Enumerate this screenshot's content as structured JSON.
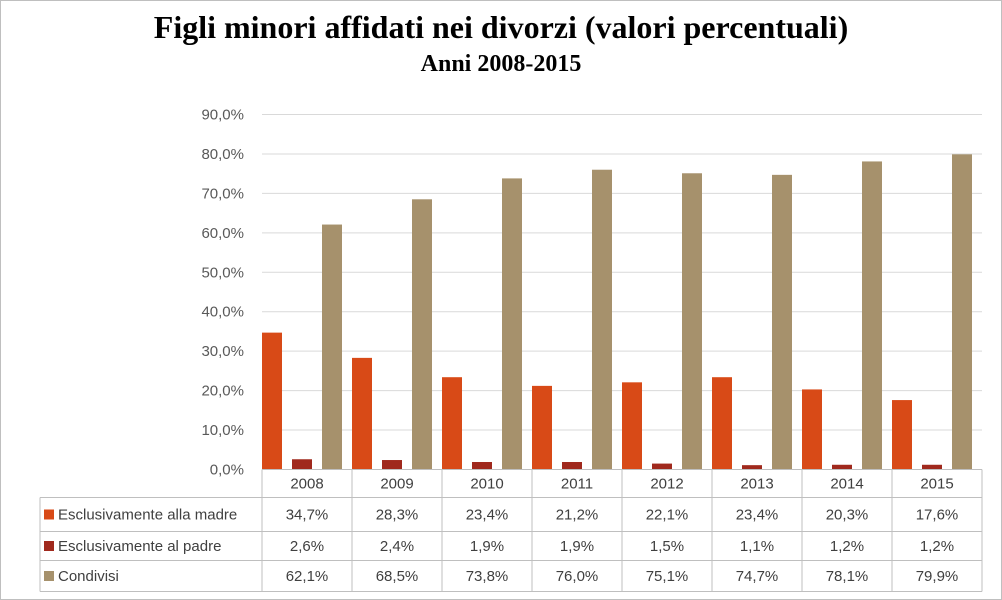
{
  "chart_data": {
    "type": "bar",
    "title": "Figli minori affidati nei divorzi (valori percentuali)",
    "subtitle": "Anni 2008-2015",
    "categories": [
      "2008",
      "2009",
      "2010",
      "2011",
      "2012",
      "2013",
      "2014",
      "2015"
    ],
    "series": [
      {
        "name": "Esclusivamente alla madre",
        "color": "#d84a17",
        "values": [
          34.7,
          28.3,
          23.4,
          21.2,
          22.1,
          23.4,
          20.3,
          17.6
        ],
        "labels": [
          "34,7%",
          "28,3%",
          "23,4%",
          "21,2%",
          "22,1%",
          "23,4%",
          "20,3%",
          "17,6%"
        ]
      },
      {
        "name": "Esclusivamente al padre",
        "color": "#a0291d",
        "values": [
          2.6,
          2.4,
          1.9,
          1.9,
          1.5,
          1.1,
          1.2,
          1.2
        ],
        "labels": [
          "2,6%",
          "2,4%",
          "1,9%",
          "1,9%",
          "1,5%",
          "1,1%",
          "1,2%",
          "1,2%"
        ]
      },
      {
        "name": "Condivisi",
        "color": "#a6916c",
        "values": [
          62.1,
          68.5,
          73.8,
          76.0,
          75.1,
          74.7,
          78.1,
          79.9
        ],
        "labels": [
          "62,1%",
          "68,5%",
          "73,8%",
          "76,0%",
          "75,1%",
          "74,7%",
          "78,1%",
          "79,9%"
        ]
      }
    ],
    "ylim": [
      0,
      90
    ],
    "yticks": [
      "0,0%",
      "10,0%",
      "20,0%",
      "30,0%",
      "40,0%",
      "50,0%",
      "60,0%",
      "70,0%",
      "80,0%",
      "90,0%"
    ],
    "grid": true,
    "legend": "data-table-below"
  }
}
